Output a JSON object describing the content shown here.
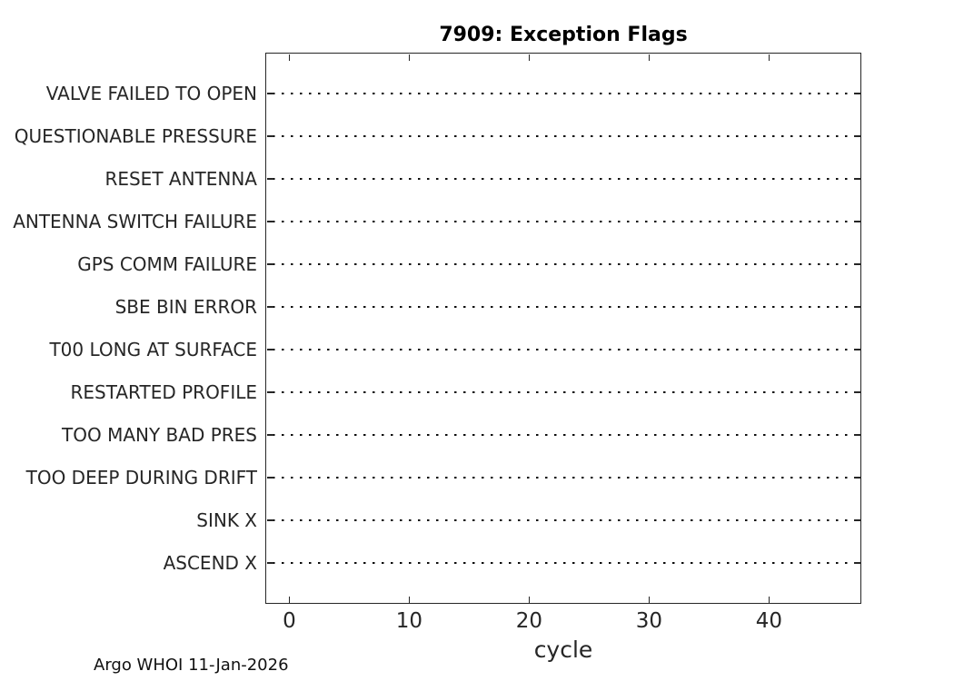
{
  "figure": {
    "title": "7909: Exception Flags",
    "footer": "Argo WHOI 11-Jan-2026"
  },
  "chart_data": {
    "type": "scatter",
    "title": "7909: Exception Flags",
    "xlabel": "cycle",
    "ylabel": "",
    "categories": [
      "VALVE FAILED TO OPEN",
      "QUESTIONABLE PRESSURE",
      "RESET ANTENNA",
      "ANTENNA SWITCH FAILURE",
      "GPS COMM FAILURE",
      "SBE BIN ERROR",
      "T00 LONG AT SURFACE",
      "RESTARTED PROFILE",
      "TOO MANY BAD PRES",
      "TOO DEEP DURING DRIFT",
      "SINK X",
      "ASCEND X"
    ],
    "x_ticks": [
      0,
      10,
      20,
      30,
      40
    ],
    "xlim": [
      -2,
      47.7
    ],
    "points": [],
    "grid": "horizontal-dotted",
    "legend": "none",
    "box": true,
    "annotations": [
      "Argo WHOI 11-Jan-2026"
    ],
    "colors": {
      "axis": "#262626",
      "grid_dots": "#0d0d0d",
      "title": "#000000",
      "background": "#ffffff"
    }
  }
}
